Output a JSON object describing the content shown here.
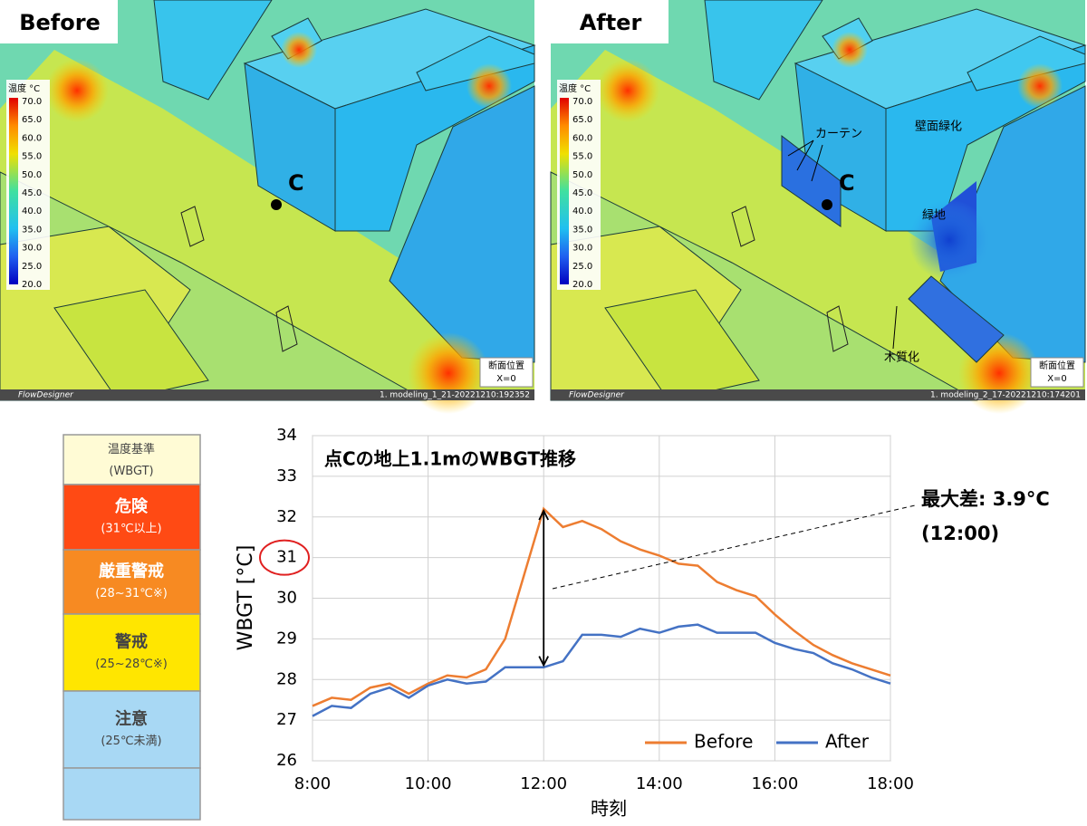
{
  "panels": [
    {
      "label": "Before",
      "colorbar_title": "温度 °C",
      "colorbar_ticks": [
        "70.0",
        "65.0",
        "60.0",
        "55.0",
        "50.0",
        "45.0",
        "40.0",
        "35.0",
        "30.0",
        "25.0",
        "20.0"
      ],
      "point_label": "C",
      "section_title": "断面位置",
      "section_value": "X=0",
      "brand": "FlowDesigner",
      "file": "1. modeling_1_21-20221210:192352"
    },
    {
      "label": "After",
      "colorbar_title": "温度 °C",
      "colorbar_ticks": [
        "70.0",
        "65.0",
        "60.0",
        "55.0",
        "50.0",
        "45.0",
        "40.0",
        "35.0",
        "30.0",
        "25.0",
        "20.0"
      ],
      "point_label": "C",
      "section_title": "断面位置",
      "section_value": "X=0",
      "brand": "FlowDesigner",
      "file": "1. modeling_2_17-20221210:174201",
      "annotations": [
        "カーテン",
        "壁面緑化",
        "緑地",
        "木質化"
      ]
    }
  ],
  "wbgt_legend": {
    "rows": [
      {
        "title": "温度基準",
        "sub": "(WBGT)"
      },
      {
        "title": "危険",
        "sub": "(31℃以上)"
      },
      {
        "title": "厳重警戒",
        "sub": "(28~31℃※)"
      },
      {
        "title": "警戒",
        "sub": "(25~28℃※)"
      },
      {
        "title": "注意",
        "sub": "(25℃未満)"
      }
    ]
  },
  "chart_data": {
    "type": "line",
    "title": "点Cの地上1.1mのWBGT推移",
    "x_label": "時刻",
    "y_label": "WBGT [°C]",
    "annotation": "最大差: 3.9°C",
    "annotation_sub": "(12:00)",
    "x": [
      480,
      500,
      520,
      540,
      560,
      580,
      600,
      620,
      640,
      660,
      680,
      700,
      720,
      740,
      760,
      780,
      800,
      820,
      840,
      860,
      880,
      900,
      920,
      940,
      960,
      980,
      1000,
      1020,
      1040,
      1060,
      1080
    ],
    "series": [
      {
        "name": "Before",
        "color": "#ed7d31",
        "values": [
          27.35,
          27.55,
          27.5,
          27.8,
          27.9,
          27.65,
          27.9,
          28.1,
          28.05,
          28.25,
          29.0,
          30.6,
          32.2,
          31.75,
          31.9,
          31.7,
          31.4,
          31.2,
          31.05,
          30.85,
          30.8,
          30.4,
          30.2,
          30.05,
          29.6,
          29.2,
          28.85,
          28.6,
          28.4,
          28.25,
          28.1
        ]
      },
      {
        "name": "After",
        "color": "#4472c4",
        "values": [
          27.1,
          27.35,
          27.3,
          27.65,
          27.8,
          27.55,
          27.85,
          28.0,
          27.9,
          27.95,
          28.3,
          28.3,
          28.3,
          28.45,
          29.1,
          29.1,
          29.05,
          29.25,
          29.15,
          29.3,
          29.35,
          29.15,
          29.15,
          29.15,
          28.9,
          28.75,
          28.65,
          28.4,
          28.25,
          28.05,
          27.9
        ]
      }
    ],
    "xlim": [
      480,
      1080
    ],
    "xticks": [
      {
        "value": 480,
        "label": "8:00"
      },
      {
        "value": 600,
        "label": "10:00"
      },
      {
        "value": 720,
        "label": "12:00"
      },
      {
        "value": 840,
        "label": "14:00"
      },
      {
        "value": 960,
        "label": "16:00"
      },
      {
        "value": 1080,
        "label": "18:00"
      }
    ],
    "ylim": [
      26,
      34
    ],
    "yticks": [
      26,
      27,
      28,
      29,
      30,
      31,
      32,
      33,
      34
    ],
    "grid": true,
    "legend": "lower right"
  }
}
